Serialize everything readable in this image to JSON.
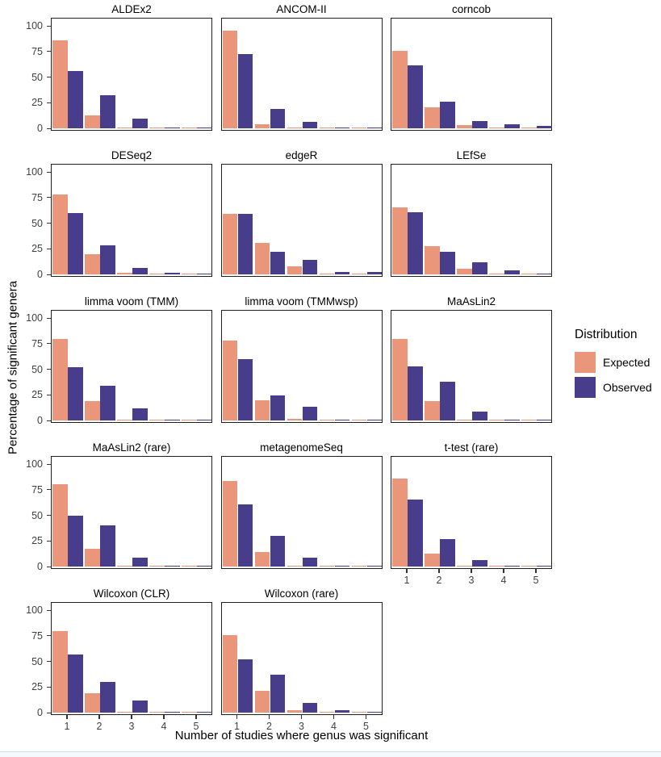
{
  "chart_data": {
    "type": "bar",
    "title": "",
    "xlabel": "Number of studies where genus was significant",
    "ylabel": "Percentage of significant genera",
    "categories": [
      "1",
      "2",
      "3",
      "4",
      "5"
    ],
    "ylim": [
      0,
      100
    ],
    "yticks": [
      0,
      25,
      50,
      75,
      100
    ],
    "grid": false,
    "legend": {
      "title": "Distribution",
      "position": "right",
      "entries": [
        {
          "name": "Expected",
          "color": "#E9967A"
        },
        {
          "name": "Observed",
          "color": "#483D8B"
        }
      ]
    },
    "facets": [
      {
        "name": "ALDEx2",
        "expected": [
          86,
          13,
          1,
          0.5,
          0.5
        ],
        "observed": [
          56,
          33,
          10,
          0.5,
          0.5
        ]
      },
      {
        "name": "ANCOM-II",
        "expected": [
          96,
          4,
          0.5,
          0.5,
          0.5
        ],
        "observed": [
          73,
          19.5,
          7,
          0.5,
          0.5
        ]
      },
      {
        "name": "corncob",
        "expected": [
          76,
          21,
          3.5,
          0.5,
          0.3
        ],
        "observed": [
          62,
          26,
          7.5,
          4,
          2.5
        ]
      },
      {
        "name": "DESeq2",
        "expected": [
          78,
          20,
          2,
          0.5,
          0.3
        ],
        "observed": [
          60.5,
          29,
          7,
          2,
          0.5
        ]
      },
      {
        "name": "edgeR",
        "expected": [
          59.5,
          31,
          8,
          1,
          0.5
        ],
        "observed": [
          59,
          22.5,
          14.5,
          3,
          3
        ]
      },
      {
        "name": "LEfSe",
        "expected": [
          66,
          28,
          6,
          1.5,
          0.4
        ],
        "observed": [
          61,
          22,
          12,
          4.5,
          1.5
        ]
      },
      {
        "name": "limma voom (TMM)",
        "expected": [
          80,
          19,
          1.5,
          0.4,
          0.3
        ],
        "observed": [
          52,
          34,
          12,
          1.2,
          0.5
        ]
      },
      {
        "name": "limma voom (TMMwsp)",
        "expected": [
          78,
          20,
          2,
          0.6,
          0.3
        ],
        "observed": [
          60,
          25,
          14,
          1.5,
          0.5
        ]
      },
      {
        "name": "MaAsLin2",
        "expected": [
          80,
          19,
          1,
          0.3,
          0.3
        ],
        "observed": [
          53,
          38,
          9,
          0.3,
          0.3
        ]
      },
      {
        "name": "MaAsLin2 (rare)",
        "expected": [
          81,
          17.5,
          1,
          0.3,
          0.3
        ],
        "observed": [
          50,
          40.5,
          9,
          0.3,
          0.3
        ]
      },
      {
        "name": "metagenomeSeq",
        "expected": [
          84,
          14.5,
          1,
          0.3,
          0.3
        ],
        "observed": [
          61,
          30.5,
          9,
          0.3,
          0.3
        ]
      },
      {
        "name": "t-test (rare)",
        "expected": [
          86,
          13,
          1,
          0.3,
          0.3
        ],
        "observed": [
          66,
          27,
          6.5,
          0.3,
          0.3
        ]
      },
      {
        "name": "Wilcoxon (CLR)",
        "expected": [
          80,
          19,
          1.5,
          0.3,
          0.3
        ],
        "observed": [
          57,
          30,
          12,
          0.3,
          0.3
        ]
      },
      {
        "name": "Wilcoxon (rare)",
        "expected": [
          76,
          21.5,
          3,
          0.4,
          0.3
        ],
        "observed": [
          52,
          37.5,
          9.5,
          2.5,
          0.7
        ]
      }
    ]
  }
}
